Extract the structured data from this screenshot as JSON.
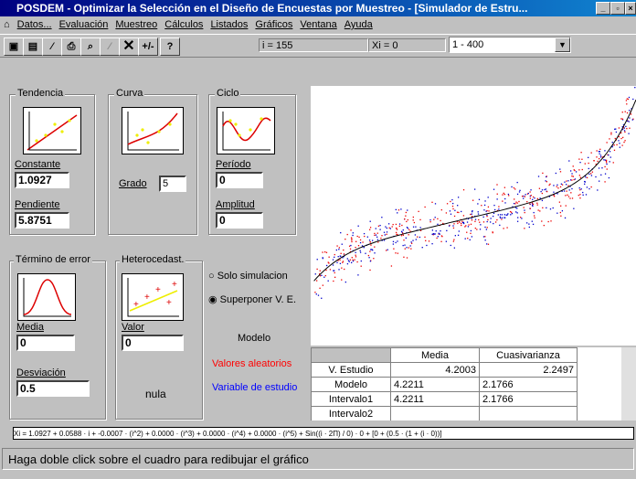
{
  "window": {
    "title": "POSDEM - Optimizar la Selección en el Diseño de Encuestas por Muestreo  - [Simulador de Estru...",
    "menu": [
      "Datos...",
      "Evaluación",
      "Muestreo",
      "Cálculos",
      "Listados",
      "Gráficos",
      "Ventana",
      "Ayuda"
    ],
    "toolbar": {
      "help": "?",
      "plusminus": "+/-",
      "i_field": "i = 155",
      "xi_field": "Xi = 0",
      "range": "1 - 400"
    }
  },
  "panels": {
    "tendencia": {
      "title": "Tendencia",
      "constante_label": "Constante",
      "constante": "1.0927",
      "pendiente_label": "Pendiente",
      "pendiente": "5.8751"
    },
    "curva": {
      "title": "Curva",
      "grado_label": "Grado",
      "grado": "5"
    },
    "ciclo": {
      "title": "Ciclo",
      "periodo_label": "Período",
      "periodo": "0",
      "amplitud_label": "Amplitud",
      "amplitud": "0"
    },
    "error": {
      "title": "Término de error",
      "media_label": "Media",
      "media": "0",
      "desviacion_label": "Desviación",
      "desviacion": "0.5"
    },
    "heterocedasticidad": {
      "title": "Heterocedast.",
      "valor_label": "Valor",
      "valor": "0",
      "note": "nula"
    }
  },
  "options": [
    "Solo simulacion",
    "Superponer V. E."
  ],
  "legend": {
    "title": "Modelo",
    "random": "Valores aleatorios",
    "study": "Variable de estudio"
  },
  "table": {
    "header": [
      "Media",
      "Cuasivarianza"
    ],
    "rows": [
      [
        "V. Estudio",
        "4.2003",
        "2.2497"
      ],
      [
        "Modelo",
        "4.2211",
        "2.1766"
      ],
      [
        "Intervalo1",
        "4.2211",
        "2.1766"
      ],
      [
        "Intervalo2"
      ]
    ]
  },
  "formula": "Xi = 1.0927 + 0.0588 · i + -0.0007 · (i^2) + 0.0000 · (i^3) + 0.0000 · (i^4) + 0.0000 · (i^5) + Sin((i · 2Π) / 0) · 0 + [0 + (0.5 · (1 + (i · 0))]",
  "status": "Haga doble click sobre el cuadro para redibujar el gráfico"
}
